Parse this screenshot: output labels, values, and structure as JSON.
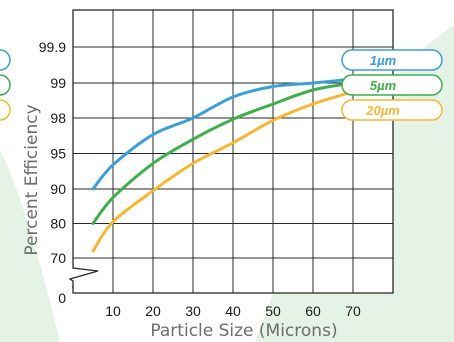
{
  "chart_data": {
    "type": "line",
    "title": "",
    "xlabel": "Particle Size (Microns)",
    "ylabel": "Percent Efficiency",
    "xlim": [
      0,
      80
    ],
    "x_ticks": [
      10,
      20,
      30,
      40,
      50,
      60,
      70
    ],
    "y_ticks": [
      "0",
      "70",
      "80",
      "90",
      "95",
      "98",
      "99",
      "99.9"
    ],
    "y_axis_break": true,
    "grid": true,
    "legend_position": "right",
    "series": [
      {
        "name": "1µm",
        "color": "#3aa0d8",
        "points": [
          [
            5,
            90
          ],
          [
            10,
            93.4
          ],
          [
            20,
            96.6
          ],
          [
            30,
            98.0
          ],
          [
            40,
            98.6
          ],
          [
            50,
            98.9
          ],
          [
            60,
            99.0
          ],
          [
            70,
            99.1
          ]
        ]
      },
      {
        "name": "5µm",
        "color": "#3db04b",
        "points": [
          [
            5,
            80
          ],
          [
            10,
            87.5
          ],
          [
            20,
            93.6
          ],
          [
            30,
            96.2
          ],
          [
            40,
            97.9
          ],
          [
            50,
            98.4
          ],
          [
            60,
            98.8
          ],
          [
            70,
            99.0
          ]
        ]
      },
      {
        "name": "20µm",
        "color": "#f7b733",
        "points": [
          [
            5,
            72
          ],
          [
            10,
            80.5
          ],
          [
            20,
            89.5
          ],
          [
            30,
            93.6
          ],
          [
            40,
            95.9
          ],
          [
            50,
            97.8
          ],
          [
            60,
            98.4
          ],
          [
            70,
            98.75
          ]
        ]
      }
    ]
  },
  "colors": {
    "background": "#ffffff",
    "green_wash": "#e4f3e6",
    "grid": "#2a2a2a",
    "axis_title": "#6d6d6d"
  }
}
